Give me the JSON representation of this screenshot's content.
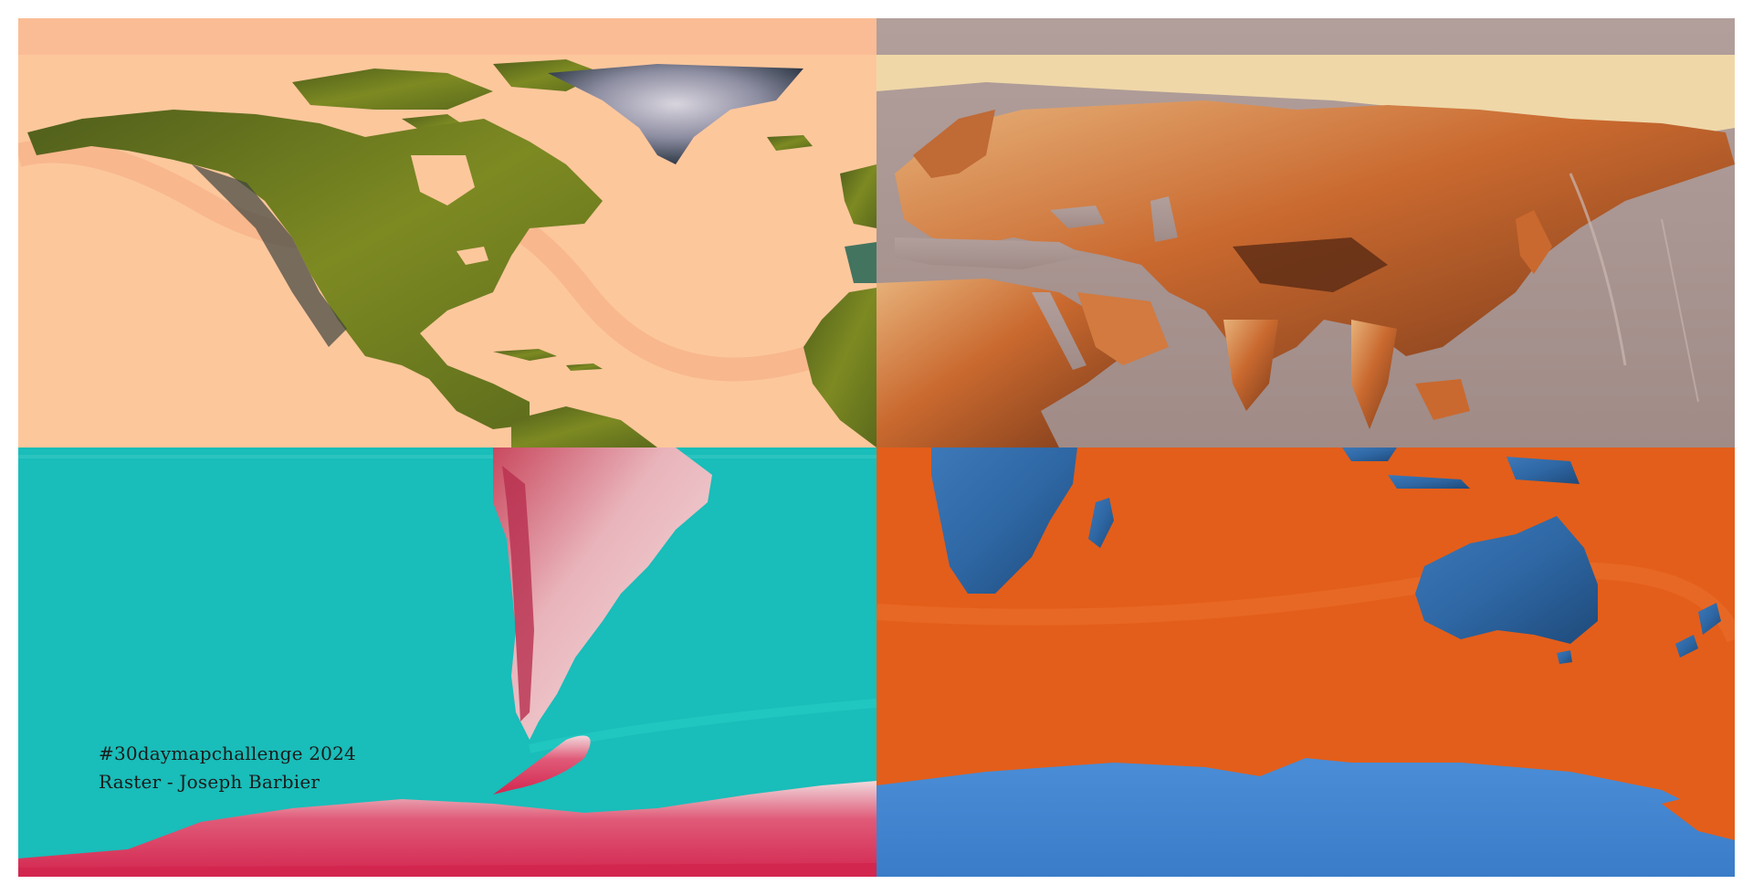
{
  "caption": {
    "line1": "#30daymapchallenge 2024",
    "line2": "Raster - Joseph Barbier"
  },
  "panels": [
    {
      "id": "north-america-atlantic",
      "ocean_color": "#fdc79c",
      "land_color": "#6e7a1f",
      "ice_color": "#3d4857"
    },
    {
      "id": "eurasia",
      "ocean_color": "#a99591",
      "land_color": "#d27a3f",
      "ice_color": "#efd7a8"
    },
    {
      "id": "south-america-antarctica",
      "ocean_color": "#19bdb9",
      "land_color": "#e8c6ca",
      "ice_color": "#d3264f"
    },
    {
      "id": "africa-australia-antarctica",
      "ocean_color": "#e35e1a",
      "land_color": "#2e67a4",
      "ice_color": "#3e82cf"
    }
  ]
}
